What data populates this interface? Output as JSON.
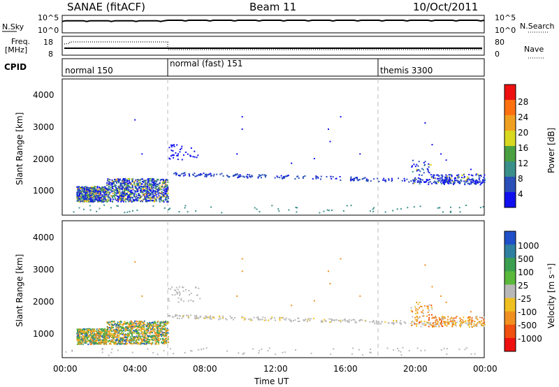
{
  "header": {
    "station": "SANAE (fitACF)",
    "beam": "Beam 11",
    "date": "10/Oct/2011"
  },
  "nsky_panel": {
    "left_label": "N.Sky",
    "right_label": "N.Search",
    "left_ticks": [
      "10^5",
      "10^0"
    ],
    "right_ticks": [
      "10^5",
      "10^0"
    ]
  },
  "freq_panel": {
    "left_label_line1": "Freq.",
    "left_label_line2": "[MHz]",
    "right_label": "Nave",
    "left_ticks": [
      "18",
      "8"
    ],
    "right_ticks": [
      "80",
      "0"
    ]
  },
  "cpid_panel": {
    "label": "CPID",
    "modes": [
      {
        "name": "normal 150",
        "start_hour": 0
      },
      {
        "name": "normal (fast) 151",
        "start_hour": 6
      },
      {
        "name": "themis 3300",
        "start_hour": 18
      }
    ]
  },
  "chart_data": [
    {
      "type": "heatmap",
      "title": "",
      "ylabel": "Slant Range [km]",
      "xlabel": "",
      "xlim_hours": [
        0,
        24
      ],
      "ylim_km": [
        200,
        4600
      ],
      "yticks": [
        "1000",
        "2000",
        "3000",
        "4000"
      ],
      "colorbar_label": "Power [dB]",
      "colorbar_ticks": [
        "4",
        "8",
        "12",
        "16",
        "20",
        "24",
        "28"
      ],
      "colorbar_colors": [
        "#1010ee",
        "#2a4fb8",
        "#3a8f8a",
        "#4aa040",
        "#d8d820",
        "#f0a020",
        "#ff7010",
        "#ee1010"
      ],
      "scatter_groups": [
        {
          "x_range": [
            0.8,
            6.0
          ],
          "y_range": [
            700,
            1400
          ],
          "class": "power-cluster"
        },
        {
          "x_range": [
            6.0,
            24.0
          ],
          "y_range": [
            1200,
            1550
          ],
          "class": "power-trail"
        }
      ]
    },
    {
      "type": "heatmap",
      "title": "",
      "ylabel": "Slant Range [km]",
      "xlabel": "Time UT",
      "xlim_hours": [
        0,
        24
      ],
      "ylim_km": [
        200,
        4600
      ],
      "yticks": [
        "1000",
        "2000",
        "3000",
        "4000"
      ],
      "xticks": [
        "00:00",
        "04:00",
        "08:00",
        "12:00",
        "16:00",
        "20:00",
        "00:00"
      ],
      "colorbar_label": "Velocity [m s⁻¹]",
      "colorbar_ticks": [
        "1000",
        "500",
        "100",
        "25",
        "-25",
        "-100",
        "-500",
        "-1000"
      ],
      "colorbar_colors": [
        "#2050c8",
        "#2f7fa0",
        "#3aa050",
        "#5ab83a",
        "#b8b8b8",
        "#f0c020",
        "#f09020",
        "#f05010",
        "#ee1010"
      ]
    }
  ]
}
